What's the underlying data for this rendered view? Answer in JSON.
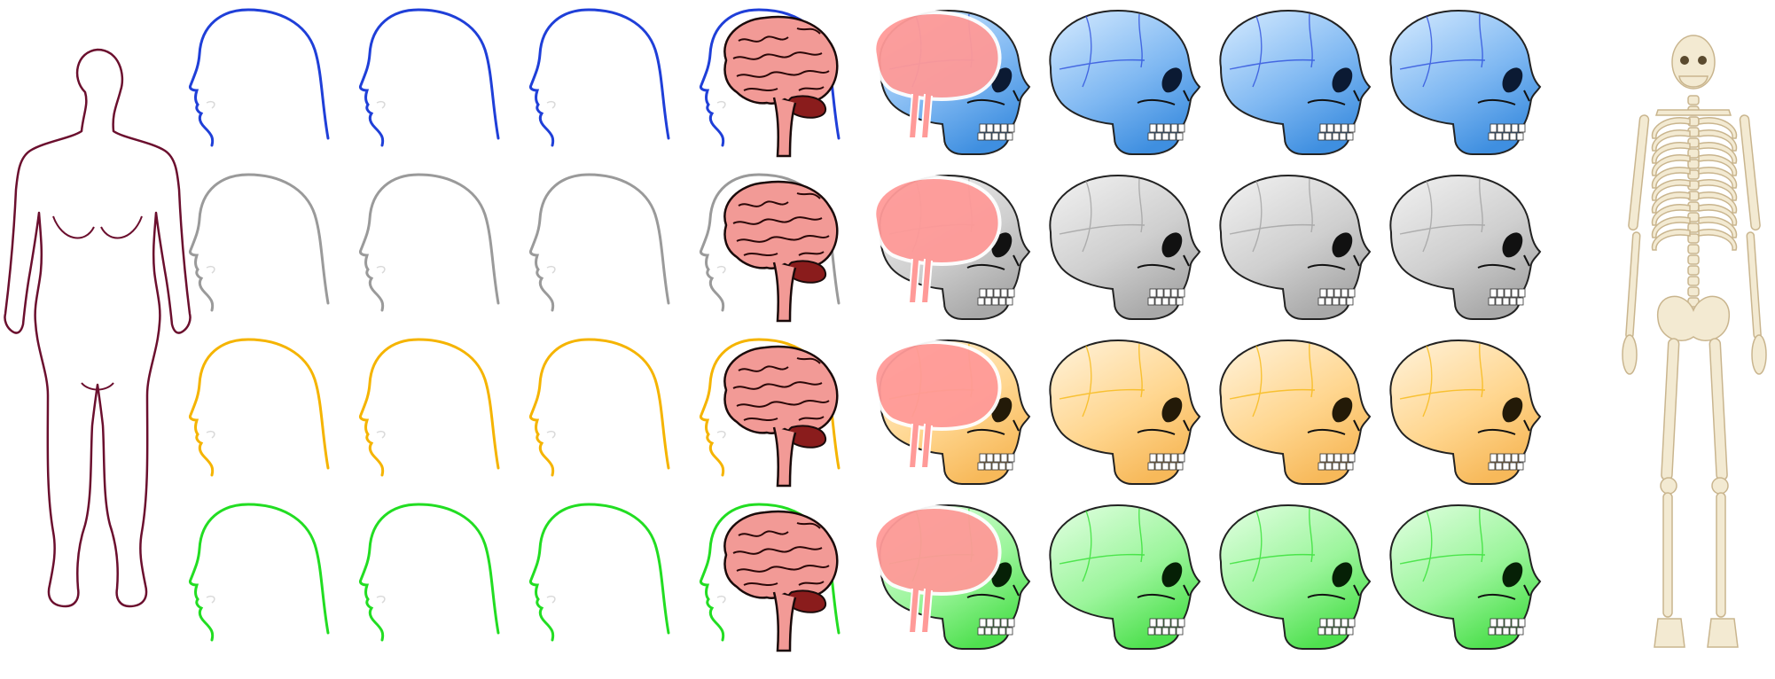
{
  "row_colors": {
    "blue": "#1f3fd8",
    "gray": "#9a9a9a",
    "orange": "#f5b400",
    "green": "#22dd22"
  },
  "rows": [
    {
      "name": "blue",
      "line_color": "#1f3fd8",
      "skull_light": "#d6ebff",
      "skull_mid": "#7fb8f2",
      "skull_dark": "#3f8fe0",
      "eye": "#0b1a33"
    },
    {
      "name": "gray",
      "line_color": "#9a9a9a",
      "skull_light": "#f2f2f2",
      "skull_mid": "#cfcfcf",
      "skull_dark": "#a8a8a8",
      "eye": "#111111"
    },
    {
      "name": "orange",
      "line_color": "#f5b400",
      "skull_light": "#fff3dc",
      "skull_mid": "#ffd68f",
      "skull_dark": "#f7b95a",
      "eye": "#231a08"
    },
    {
      "name": "green",
      "line_color": "#22dd22",
      "skull_light": "#e3ffe3",
      "skull_mid": "#9bf59b",
      "skull_dark": "#4fe04f",
      "eye": "#062006"
    }
  ],
  "columns": [
    "head-outline",
    "head-outline",
    "head-outline",
    "head-with-brain",
    "brain-silhouette-skull",
    "skull",
    "skull",
    "skull"
  ],
  "colors": {
    "body_outline": "#6b0f2e",
    "brain_fill": "#f29a96",
    "brain_dark": "#8a1c1c",
    "brain_silhouette": "#ff9a98",
    "bone": "#f3ead2",
    "bone_shadow": "#c9b58e"
  },
  "icons": {
    "left": "human-body-outline",
    "right": "human-skeleton"
  }
}
